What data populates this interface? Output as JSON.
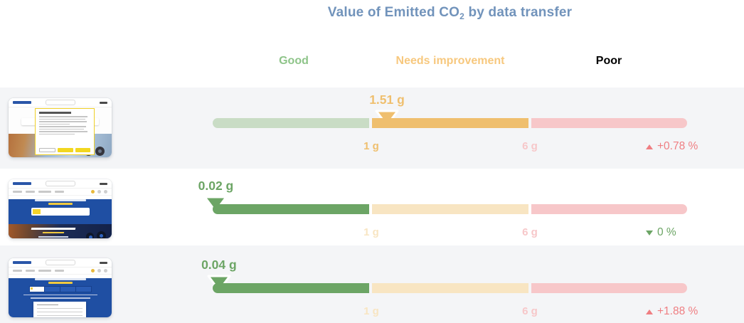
{
  "title": {
    "pre": "Value of Emitted CO",
    "sub": "2",
    "post": " by data transfer"
  },
  "zone_headers": {
    "good": "Good",
    "warn": "Needs improvement",
    "poor": "Poor"
  },
  "scale": {
    "tick1": "1 g",
    "tick2": "6 g",
    "thresholds_g": [
      1,
      6
    ]
  },
  "colors": {
    "title": "#7193bb",
    "good": "#6ca565",
    "good_faded": "#c9dcc5",
    "good_header": "#8ec489",
    "warn": "#efbf6e",
    "warn_faded": "#f8e5c2",
    "warn_header": "#f7c87e",
    "poor": "#f3939b",
    "poor_faded": "#f7c7c9",
    "bad": "#ef7e82",
    "stripe": "#f4f5f7"
  },
  "rows": [
    {
      "thumbnail": "webpage-with-cookie-consent-modal",
      "value": 1.51,
      "value_label": "1.51 g",
      "zone": "needs-improvement",
      "change": {
        "direction": "up",
        "label": "+0.78 %",
        "tone": "bad"
      }
    },
    {
      "thumbnail": "webpage-homepage-hero-banner",
      "value": 0.02,
      "value_label": "0.02 g",
      "zone": "good",
      "change": {
        "direction": "down",
        "label": "0 %",
        "tone": "good"
      }
    },
    {
      "thumbnail": "webpage-search-dropdown-open",
      "value": 0.04,
      "value_label": "0.04 g",
      "zone": "good",
      "change": {
        "direction": "up",
        "label": "+1.88 %",
        "tone": "bad"
      }
    }
  ],
  "chart_data": {
    "type": "bar",
    "subtype": "bullet-gauge-horizontal",
    "title": "Value of Emitted CO2 by data transfer",
    "unit": "g",
    "categories": [
      "webpage-with-cookie-consent-modal",
      "webpage-homepage-hero-banner",
      "webpage-search-dropdown-open"
    ],
    "values": [
      1.51,
      0.02,
      0.04
    ],
    "value_labels": [
      "1.51 g",
      "0.02 g",
      "0.04 g"
    ],
    "zones": [
      {
        "label": "Good",
        "from_g": 0,
        "to_g": 1
      },
      {
        "label": "Needs improvement",
        "from_g": 1,
        "to_g": 6
      },
      {
        "label": "Poor",
        "from_g": 6,
        "to_g": null
      }
    ],
    "tick_labels": [
      "1 g",
      "6 g"
    ],
    "active_zone_per_row": [
      "Needs improvement",
      "Good",
      "Good"
    ],
    "change_percent_labels": [
      "+0.78 %",
      "0 %",
      "+1.88 %"
    ],
    "change_directions": [
      "up",
      "down",
      "up"
    ],
    "legend_position": "top",
    "grid": false
  }
}
